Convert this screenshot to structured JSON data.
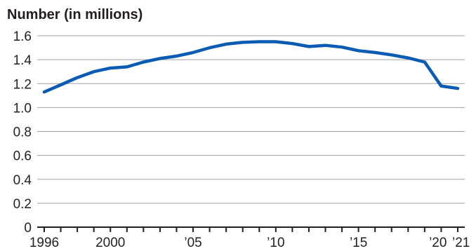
{
  "chart_data": {
    "type": "line",
    "ylabel": "Number (in millions)",
    "ylim": [
      0,
      1.6
    ],
    "yticks": [
      "0",
      "0.2",
      "0.4",
      "0.6",
      "0.8",
      "1.0",
      "1.2",
      "1.4",
      "1.6"
    ],
    "xlim": [
      1996,
      2021
    ],
    "xtick_labels": [
      {
        "x": 1996,
        "label": "1996"
      },
      {
        "x": 2000,
        "label": "2000"
      },
      {
        "x": 2005,
        "label": "’05"
      },
      {
        "x": 2010,
        "label": "’10"
      },
      {
        "x": 2015,
        "label": "’15"
      },
      {
        "x": 2020,
        "label": "’20"
      },
      {
        "x": 2021,
        "label": "’21"
      }
    ],
    "grid": true,
    "series": [
      {
        "color": "#0a5bb4",
        "x": [
          1996,
          1997,
          1998,
          1999,
          2000,
          2001,
          2002,
          2003,
          2004,
          2005,
          2006,
          2007,
          2008,
          2009,
          2010,
          2011,
          2012,
          2013,
          2014,
          2015,
          2016,
          2017,
          2018,
          2019,
          2020,
          2021
        ],
        "values": [
          1.13,
          1.19,
          1.25,
          1.3,
          1.33,
          1.34,
          1.38,
          1.41,
          1.43,
          1.46,
          1.5,
          1.53,
          1.545,
          1.55,
          1.55,
          1.535,
          1.51,
          1.52,
          1.505,
          1.475,
          1.46,
          1.44,
          1.415,
          1.38,
          1.18,
          1.16
        ]
      }
    ]
  }
}
